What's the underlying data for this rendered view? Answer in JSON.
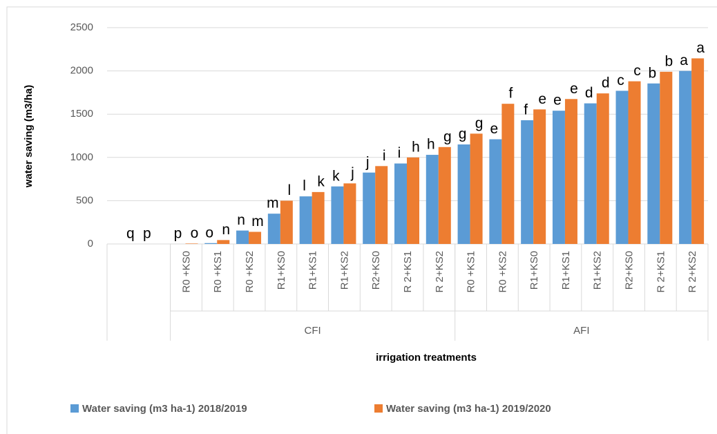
{
  "chart_data": {
    "type": "bar",
    "y_label": "water saving (m3/ha)",
    "x_label": "irrigation treatments",
    "groups": [
      {
        "label": null,
        "categories": [
          null
        ]
      },
      {
        "label": "CFI",
        "categories": [
          "R0 +KS0",
          "R0 +KS1",
          "R0 +KS2",
          "R1+KS0",
          "R1+KS1",
          "R1+KS2",
          "R2+KS0",
          "R 2+KS1",
          "R 2+KS2"
        ]
      },
      {
        "label": "AFI",
        "categories": [
          "R0 +KS1",
          "R0 +KS2",
          "R1+KS0",
          "R1+KS1",
          "R1+KS2",
          "R2+KS0",
          "R 2+KS1",
          "R 2+KS2"
        ]
      }
    ],
    "series": [
      {
        "name": "Water saving (m3 ha-1) 2018/2019",
        "color": "#5b9bd5",
        "values": [
          0,
          0,
          10,
          155,
          350,
          550,
          665,
          825,
          930,
          1030,
          1150,
          1210,
          1430,
          1540,
          1625,
          1770,
          1855,
          2000
        ],
        "value_labels": [
          "q",
          "p",
          "o",
          "n",
          "m",
          "l",
          "k",
          "j",
          "i",
          "h",
          "g",
          "e",
          "f",
          "e",
          "d",
          "c",
          "b",
          "a"
        ]
      },
      {
        "name": "Water saving (m3 ha-1) 2019/2020",
        "color": "#ed7d31",
        "values": [
          0,
          5,
          45,
          140,
          500,
          600,
          700,
          900,
          1000,
          1120,
          1275,
          1620,
          1555,
          1675,
          1740,
          1880,
          1990,
          2145
        ],
        "value_labels": [
          "p",
          "o",
          "n",
          "m",
          "l",
          "k",
          "j",
          "i",
          "h",
          "g",
          "g",
          "f",
          "e",
          "e",
          "d",
          "c",
          "b",
          "a"
        ]
      }
    ],
    "ylim": [
      0,
      2500
    ],
    "yticks": [
      0,
      500,
      1000,
      1500,
      2000,
      2500
    ],
    "grid": true,
    "legend": "bottom"
  }
}
